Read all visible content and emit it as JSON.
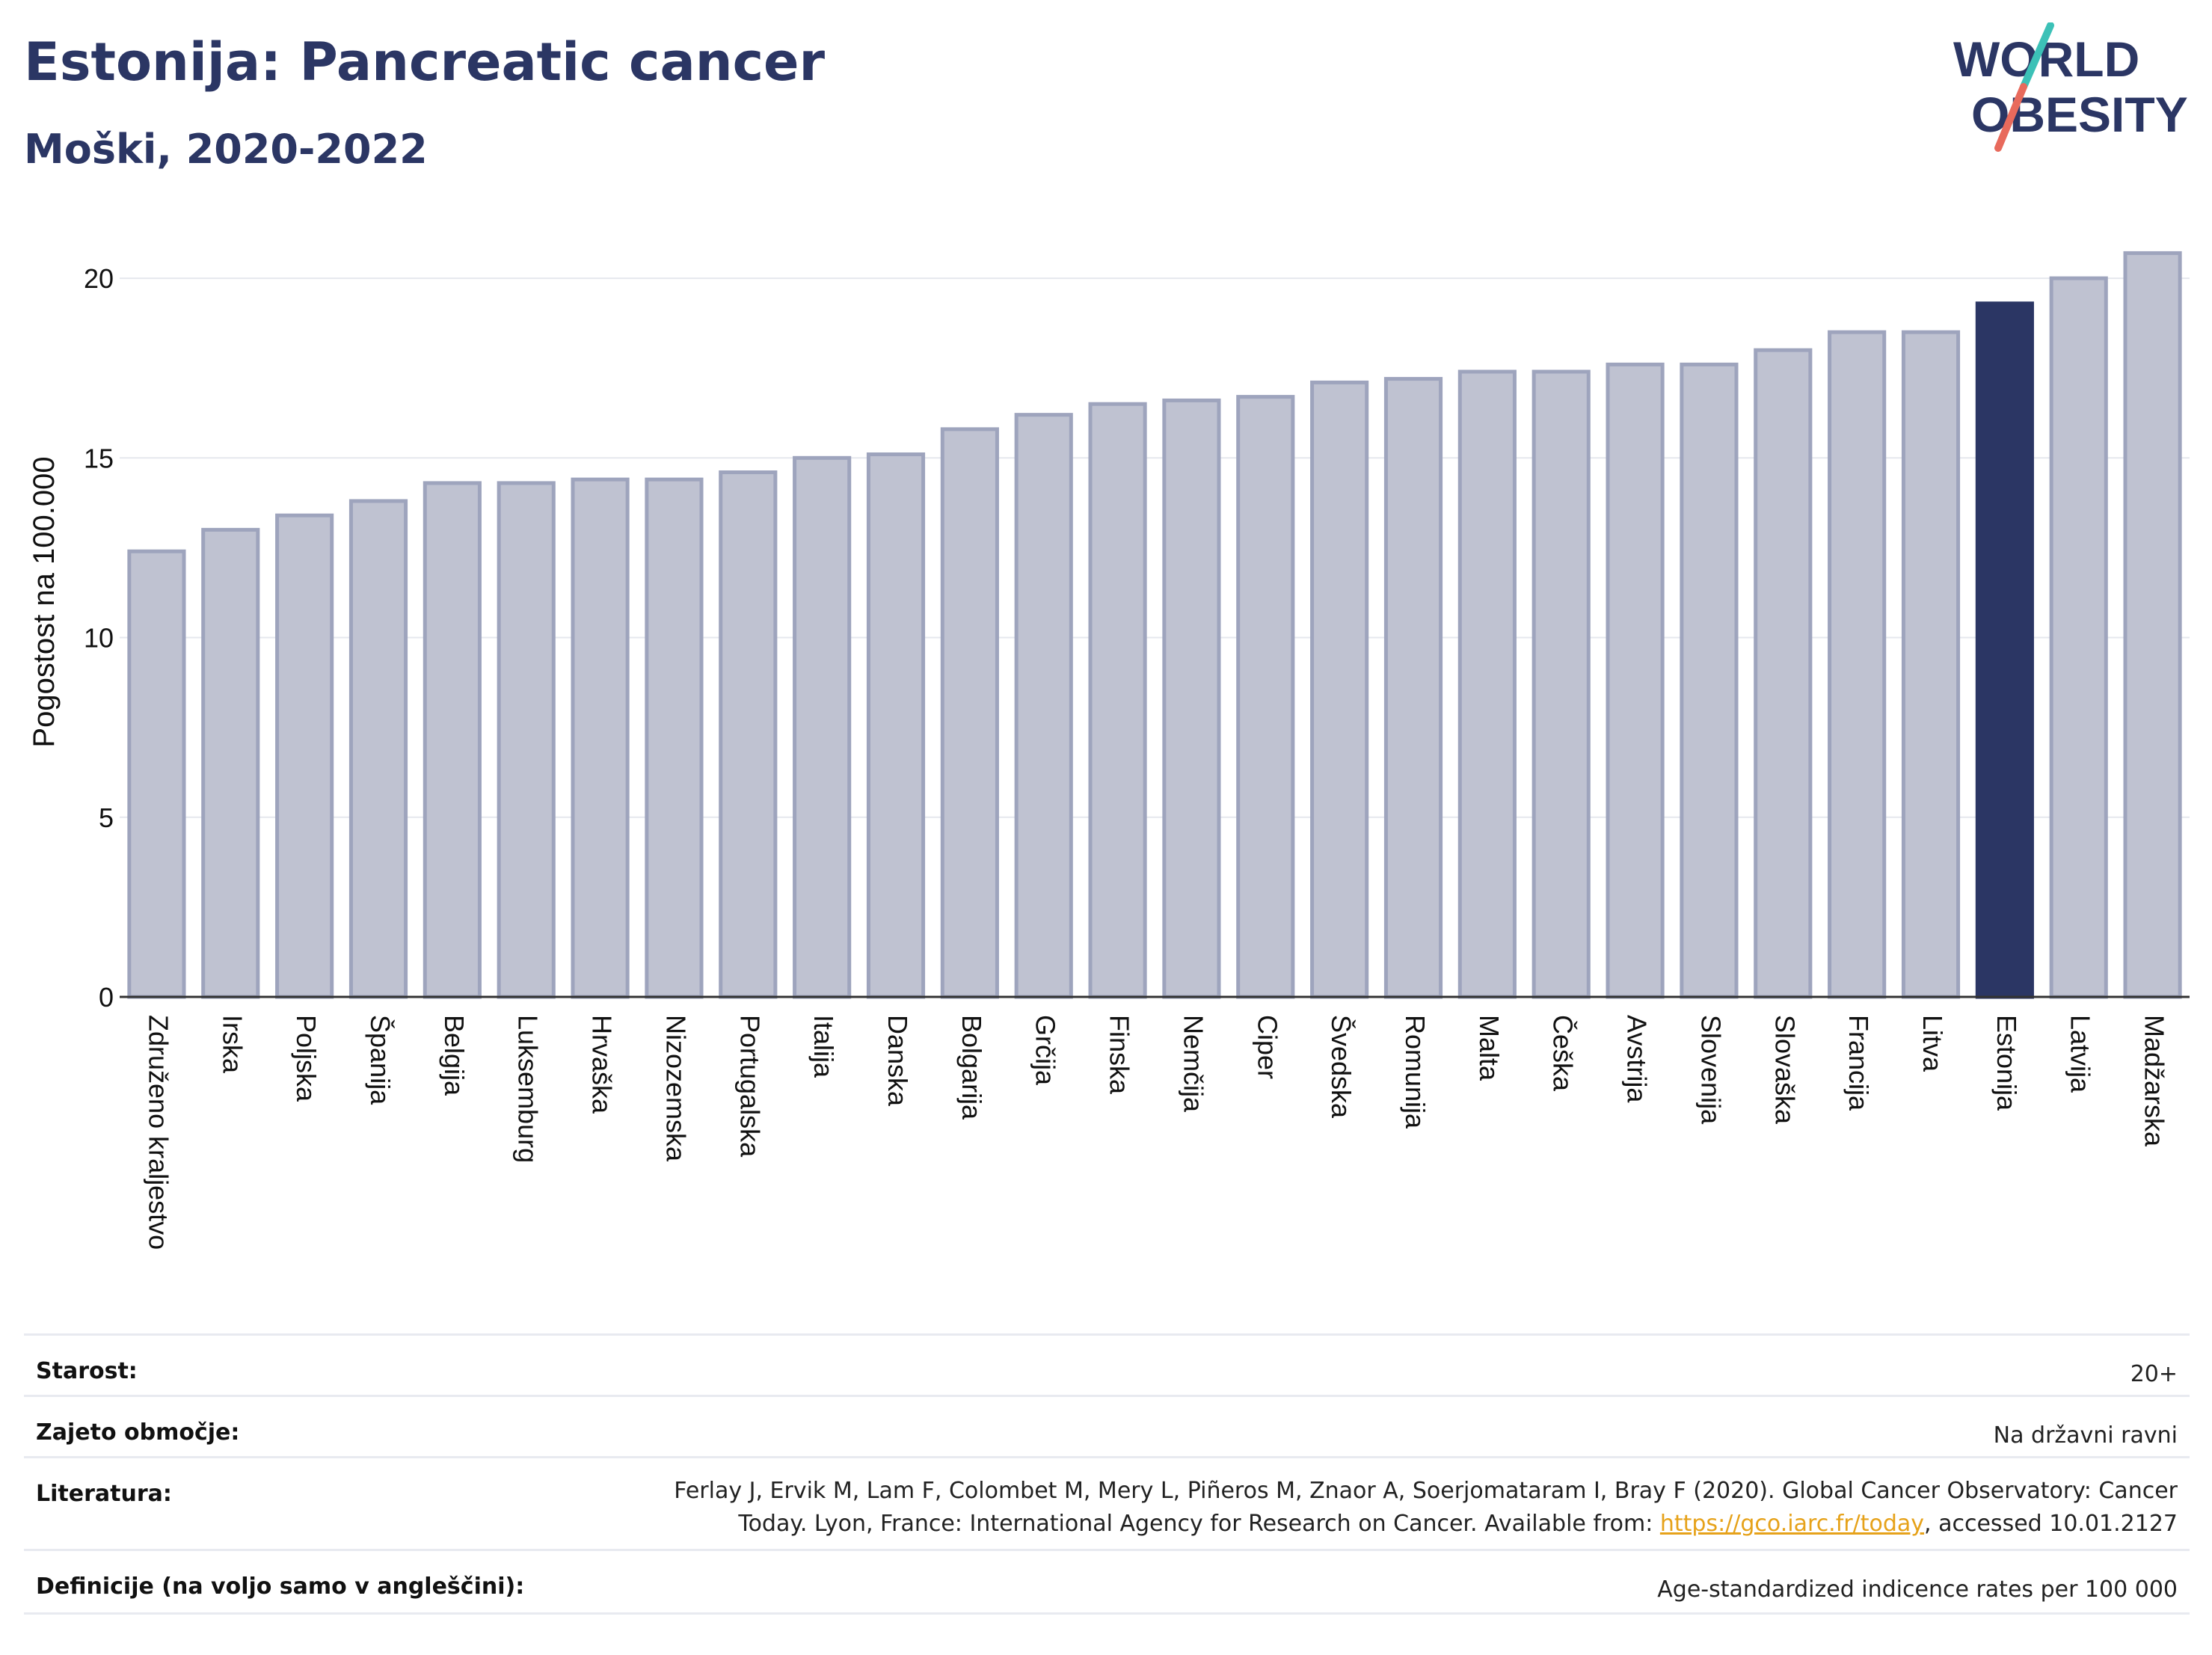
{
  "header": {
    "title": "Estonija: Pancreatic cancer",
    "subtitle": "Moški, 2020-2022"
  },
  "logo": {
    "line1": "WORLD",
    "line2": "OBESITY",
    "colors": {
      "text": "#2b3664",
      "slash_teal": "#3cc1b7",
      "slash_coral": "#e86a5c"
    }
  },
  "chart_data": {
    "type": "bar",
    "ylabel": "Pogostost na 100.000",
    "ylim": [
      0,
      21.5
    ],
    "yticks": [
      0,
      5,
      10,
      15,
      20
    ],
    "grid": true,
    "highlight": "Estonija",
    "colors": {
      "bar": "#bfc2d1",
      "bar_edge": "#9ea4bd",
      "highlight": "#2b3664"
    },
    "categories": [
      "Združeno kraljestvo",
      "Irska",
      "Poljska",
      "Španija",
      "Belgija",
      "Luksemburg",
      "Hrvaška",
      "Nizozemska",
      "Portugalska",
      "Italija",
      "Danska",
      "Bolgarija",
      "Grčija",
      "Finska",
      "Nemčija",
      "Ciper",
      "Švedska",
      "Romunija",
      "Malta",
      "Češka",
      "Avstrija",
      "Slovenija",
      "Slovaška",
      "Francija",
      "Litva",
      "Estonija",
      "Latvija",
      "Madžarska"
    ],
    "values": [
      12.4,
      13.0,
      13.4,
      13.8,
      14.3,
      14.3,
      14.4,
      14.4,
      14.6,
      15.0,
      15.1,
      15.8,
      16.2,
      16.5,
      16.6,
      16.7,
      17.1,
      17.2,
      17.4,
      17.4,
      17.6,
      17.6,
      18.0,
      18.5,
      18.5,
      19.3,
      20.0,
      20.7
    ]
  },
  "info": {
    "age_label": "Starost:",
    "age_value": "20+",
    "coverage_label": "Zajeto območje:",
    "coverage_value": "Na državni ravni",
    "literature_label": "Literatura:",
    "literature_line1": "Ferlay J, Ervik M, Lam F, Colombet M, Mery L, Piñeros M, Znaor A, Soerjomataram I, Bray F (2020). Global Cancer Observatory: Cancer",
    "literature_line2_pre": "Today. Lyon, France: International Agency for Research on Cancer. Available from: ",
    "literature_link": "https://gco.iarc.fr/today",
    "literature_line2_post": ", accessed 10.01.2127",
    "definitions_label": "Definicije (na voljo samo v angleščini):",
    "definitions_value": "Age-standardized indicence rates per 100 000"
  }
}
